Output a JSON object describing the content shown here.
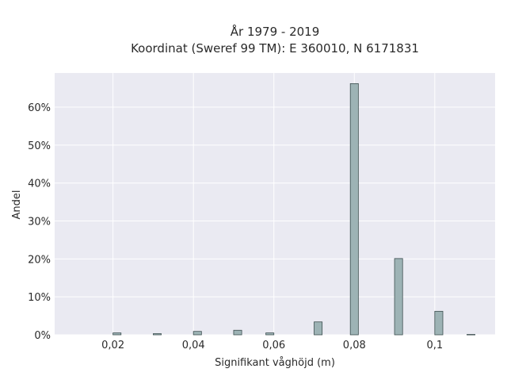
{
  "chart_data": {
    "type": "bar",
    "title_line1": "År 1979 - 2019",
    "title_line2": "Koordinat (Sweref 99 TM): E 360010, N 6171831",
    "xlabel": "Signifikant våghöjd (m)",
    "ylabel": "Andel",
    "xlim": [
      0.0055,
      0.115
    ],
    "ylim": [
      0,
      69
    ],
    "x_ticks": [
      {
        "value": 0.02,
        "label": "0,02"
      },
      {
        "value": 0.04,
        "label": "0,04"
      },
      {
        "value": 0.06,
        "label": "0,06"
      },
      {
        "value": 0.08,
        "label": "0,08"
      },
      {
        "value": 0.1,
        "label": "0,1"
      }
    ],
    "y_ticks": [
      {
        "value": 0,
        "label": "0%"
      },
      {
        "value": 10,
        "label": "10%"
      },
      {
        "value": 20,
        "label": "20%"
      },
      {
        "value": 30,
        "label": "30%"
      },
      {
        "value": 40,
        "label": "40%"
      },
      {
        "value": 50,
        "label": "50%"
      },
      {
        "value": 60,
        "label": "60%"
      }
    ],
    "grid": true,
    "bar_width": 0.002,
    "bars": [
      {
        "x": 0.021,
        "value": 0.5
      },
      {
        "x": 0.031,
        "value": 0.3
      },
      {
        "x": 0.041,
        "value": 0.9
      },
      {
        "x": 0.051,
        "value": 1.2
      },
      {
        "x": 0.059,
        "value": 0.5
      },
      {
        "x": 0.071,
        "value": 3.4
      },
      {
        "x": 0.08,
        "value": 66.2
      },
      {
        "x": 0.091,
        "value": 20.1
      },
      {
        "x": 0.101,
        "value": 6.2
      },
      {
        "x": 0.109,
        "value": 0.1
      }
    ],
    "colors": {
      "plot_bg": "#eaeaf2",
      "grid": "#ffffff",
      "bar_fill": "#9db3b5",
      "bar_stroke": "#3d4f50"
    }
  }
}
